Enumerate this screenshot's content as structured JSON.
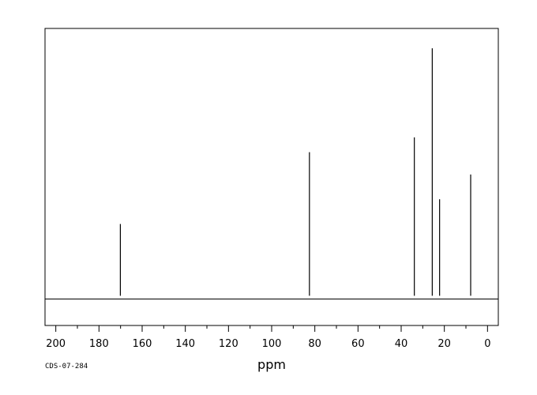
{
  "chart_data": {
    "type": "line",
    "xlabel": "ppm",
    "x_reversed": true,
    "xlim": [
      205,
      -5
    ],
    "ylim": [
      -0.12,
      1.08
    ],
    "major_ticks": [
      200,
      180,
      160,
      140,
      120,
      100,
      80,
      60,
      40,
      20,
      0
    ],
    "minor_step": 10,
    "grid": false,
    "legend": "none",
    "peaks": [
      {
        "ppm": 170.1,
        "intensity": 0.29
      },
      {
        "ppm": 82.5,
        "intensity": 0.58
      },
      {
        "ppm": 33.9,
        "intensity": 0.64
      },
      {
        "ppm": 25.6,
        "intensity": 1.0
      },
      {
        "ppm": 22.2,
        "intensity": 0.39
      },
      {
        "ppm": 7.8,
        "intensity": 0.49
      }
    ]
  },
  "footer": {
    "code": "CDS-07-284"
  },
  "colors": {
    "line": "#000000",
    "background": "#ffffff"
  }
}
